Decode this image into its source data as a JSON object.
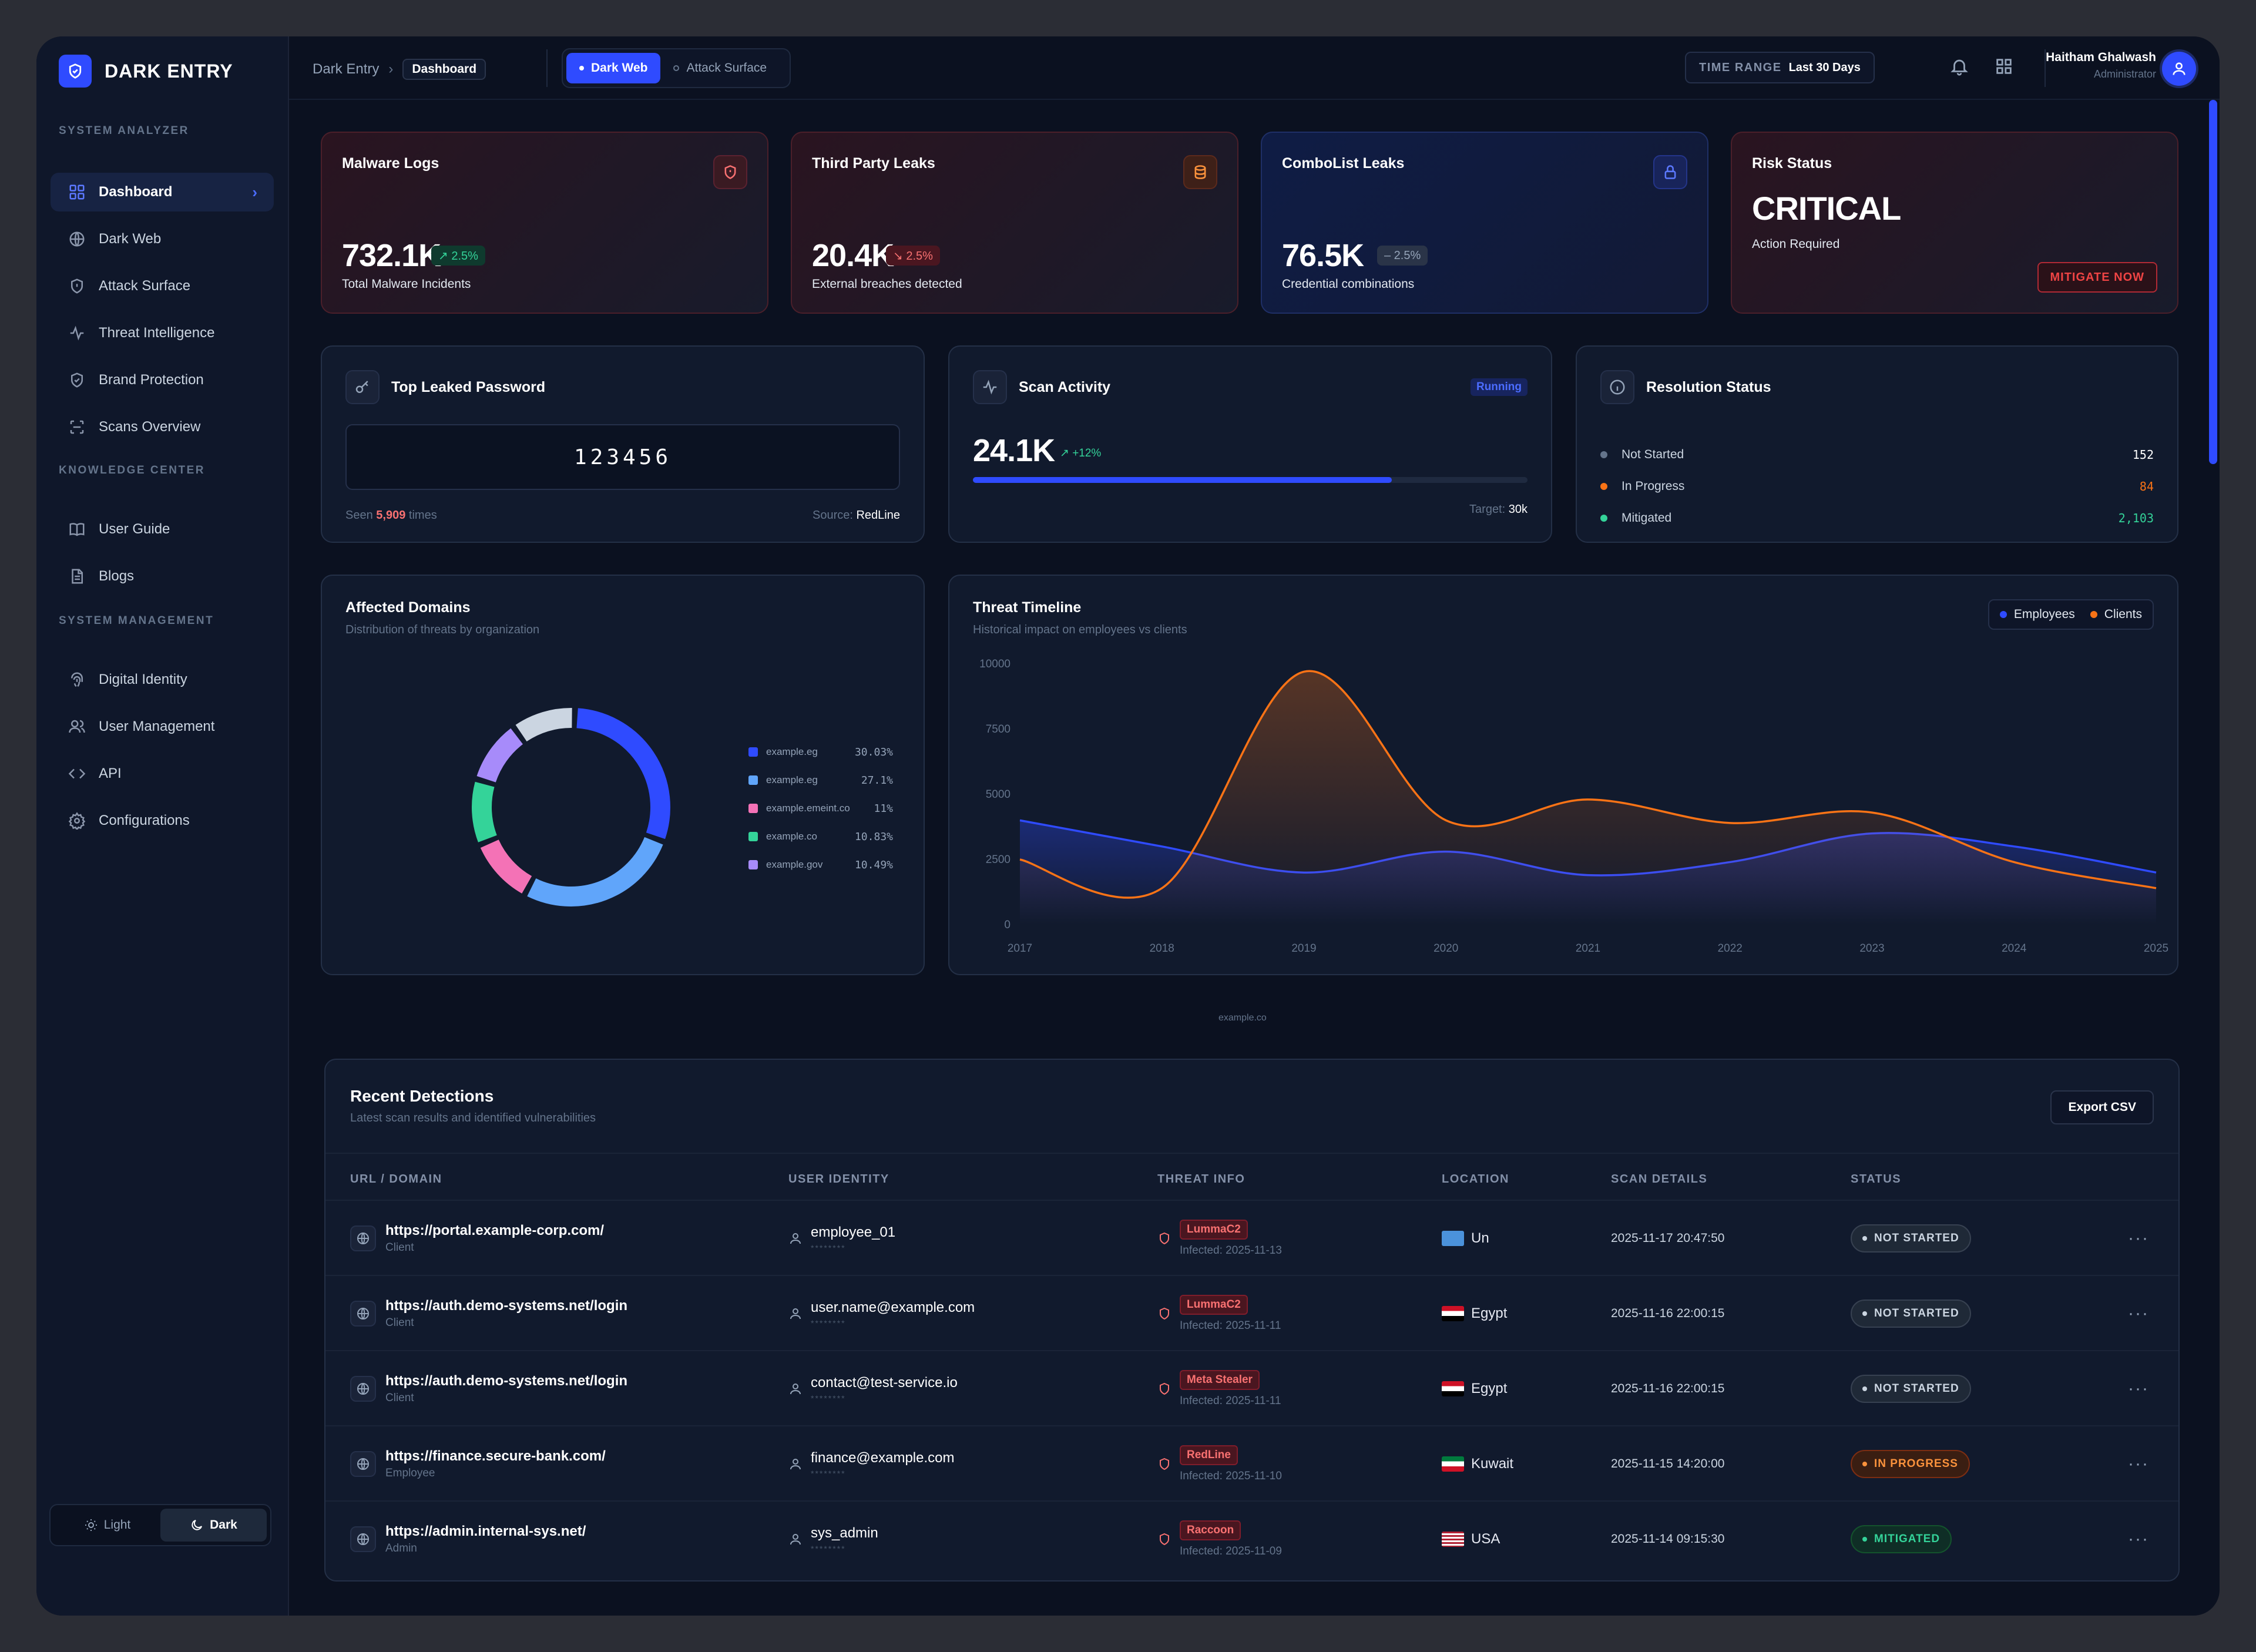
{
  "app": {
    "name": "DARK ENTRY"
  },
  "sidebar": {
    "sections": [
      "SYSTEM ANALYZER",
      "KNOWLEDGE CENTER",
      "SYSTEM MANAGEMENT"
    ],
    "items": [
      {
        "label": "Dashboard",
        "icon": "grid-icon",
        "active": true
      },
      {
        "label": "Dark Web",
        "icon": "globe-icon"
      },
      {
        "label": "Attack Surface",
        "icon": "shield-icon"
      },
      {
        "label": "Threat Intelligence",
        "icon": "pulse-icon"
      },
      {
        "label": "Brand Protection",
        "icon": "shield-check-icon"
      },
      {
        "label": "Scans Overview",
        "icon": "scan-icon"
      },
      {
        "label": "User Guide",
        "icon": "book-icon"
      },
      {
        "label": "Blogs",
        "icon": "document-icon"
      },
      {
        "label": "Digital Identity",
        "icon": "fingerprint-icon"
      },
      {
        "label": "User Management",
        "icon": "users-icon"
      },
      {
        "label": "API",
        "icon": "code-icon"
      },
      {
        "label": "Configurations",
        "icon": "gear-icon"
      }
    ],
    "theme": {
      "light": "Light",
      "dark": "Dark",
      "selected": "Dark"
    }
  },
  "header": {
    "breadcrumb": {
      "root": "Dark Entry",
      "current": "Dashboard"
    },
    "tabs": [
      {
        "label": "Dark Web",
        "active": true
      },
      {
        "label": "Attack Surface",
        "active": false
      }
    ],
    "time_range": {
      "label": "TIME RANGE",
      "value": "Last 30 Days"
    },
    "user": {
      "name": "Haitham Ghalwash",
      "role": "Administrator"
    }
  },
  "stats": [
    {
      "title": "Malware Logs",
      "value": "732.1K",
      "badge": "↗ 2.5%",
      "sub": "Total Malware Incidents",
      "icon": "shield-alert-icon"
    },
    {
      "title": "Third Party Leaks",
      "value": "20.4K",
      "badge": "↘ 2.5%",
      "sub": "External breaches detected",
      "icon": "database-icon"
    },
    {
      "title": "ComboList Leaks",
      "value": "76.5K",
      "badge": "– 2.5%",
      "sub": "Credential combinations",
      "icon": "lock-icon"
    },
    {
      "title": "Risk Status",
      "value": "CRITICAL",
      "sub": "Action Required",
      "button": "MITIGATE NOW"
    }
  ],
  "password": {
    "title": "Top Leaked Password",
    "value": "123456",
    "seen_prefix": "Seen",
    "seen_count": "5,909",
    "seen_suffix": "times",
    "source_label": "Source:",
    "source": "RedLine"
  },
  "scan": {
    "title": "Scan Activity",
    "status": "Running",
    "value": "24.1K",
    "change": "↗ +12%",
    "progress": 0.755,
    "target_label": "Target:",
    "target": "30k"
  },
  "resolution": {
    "title": "Resolution Status",
    "rows": [
      {
        "label": "Not Started",
        "value": "152",
        "color": "#64748b"
      },
      {
        "label": "In Progress",
        "value": "84",
        "color": "#f97316"
      },
      {
        "label": "Mitigated",
        "value": "2,103",
        "color": "#34d399"
      }
    ]
  },
  "domains": {
    "title": "Affected Domains",
    "subtitle": "Distribution of threats by organization",
    "footer": "example.co",
    "slices": [
      {
        "label": "example.eg",
        "pct": "30.03%",
        "value": 30.03,
        "color": "#2f4bff"
      },
      {
        "label": "example.eg",
        "pct": "27.1%",
        "value": 27.1,
        "color": "#60a5fa"
      },
      {
        "label": "example.emeint.co",
        "pct": "11%",
        "value": 11,
        "color": "#f472b6"
      },
      {
        "label": "example.co",
        "pct": "10.83%",
        "value": 10.83,
        "color": "#34d399"
      },
      {
        "label": "example.gov",
        "pct": "10.49%",
        "value": 10.49,
        "color": "#a78bfa"
      }
    ]
  },
  "chart_data": {
    "type": "area",
    "title": "Threat Timeline",
    "subtitle": "Historical impact on employees vs clients",
    "x": [
      2017,
      2018,
      2019,
      2020,
      2021,
      2022,
      2023,
      2024,
      2025
    ],
    "ylim": [
      0,
      10000
    ],
    "yticks": [
      0,
      2500,
      5000,
      7500,
      10000
    ],
    "legend": "top-right",
    "series": [
      {
        "name": "Employees",
        "color": "#2f4bff",
        "values": [
          4000,
          3000,
          2000,
          2800,
          1900,
          2400,
          3500,
          3000,
          2000
        ]
      },
      {
        "name": "Clients",
        "color": "#f97316",
        "values": [
          2500,
          1400,
          9700,
          4000,
          4800,
          3900,
          4300,
          2400,
          1400
        ]
      }
    ]
  },
  "detections": {
    "title": "Recent Detections",
    "subtitle": "Latest scan results and identified vulnerabilities",
    "export": "Export CSV",
    "columns": [
      "URL / DOMAIN",
      "USER IDENTITY",
      "THREAT INFO",
      "LOCATION",
      "SCAN DETAILS",
      "STATUS"
    ],
    "rows": [
      {
        "url": "https://portal.example-corp.com/",
        "type": "Client",
        "user": "employee_01",
        "mask": "********",
        "threat": "LummaC2",
        "infected": "Infected: 2025-11-13",
        "location": "Un",
        "flag": "un",
        "scan": "2025-11-17 20:47:50",
        "status": "NOT STARTED"
      },
      {
        "url": "https://auth.demo-systems.net/login",
        "type": "Client",
        "user": "user.name@example.com",
        "mask": "********",
        "threat": "LummaC2",
        "infected": "Infected: 2025-11-11",
        "location": "Egypt",
        "flag": "eg",
        "scan": "2025-11-16 22:00:15",
        "status": "NOT STARTED"
      },
      {
        "url": "https://auth.demo-systems.net/login",
        "type": "Client",
        "user": "contact@test-service.io",
        "mask": "********",
        "threat": "Meta Stealer",
        "infected": "Infected: 2025-11-11",
        "location": "Egypt",
        "flag": "eg",
        "scan": "2025-11-16 22:00:15",
        "status": "NOT STARTED"
      },
      {
        "url": "https://finance.secure-bank.com/",
        "type": "Employee",
        "user": "finance@example.com",
        "mask": "********",
        "threat": "RedLine",
        "infected": "Infected: 2025-11-10",
        "location": "Kuwait",
        "flag": "kw",
        "scan": "2025-11-15 14:20:00",
        "status": "IN PROGRESS"
      },
      {
        "url": "https://admin.internal-sys.net/",
        "type": "Admin",
        "user": "sys_admin",
        "mask": "********",
        "threat": "Raccoon",
        "infected": "Infected: 2025-11-09",
        "location": "USA",
        "flag": "us",
        "scan": "2025-11-14 09:15:30",
        "status": "MITIGATED"
      }
    ]
  }
}
